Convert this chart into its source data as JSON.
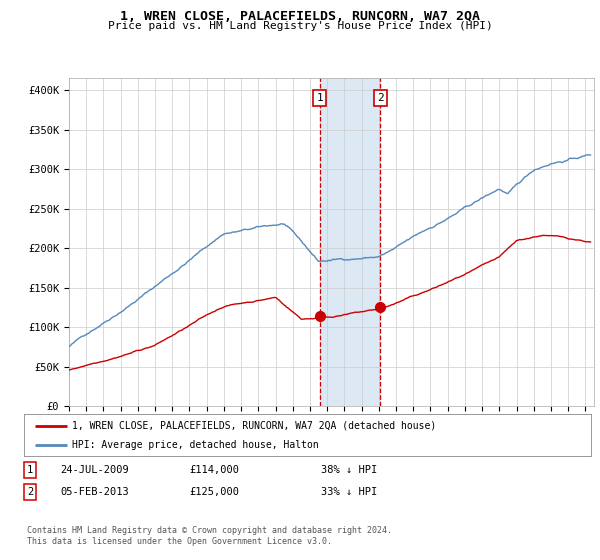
{
  "title": "1, WREN CLOSE, PALACEFIELDS, RUNCORN, WA7 2QA",
  "subtitle": "Price paid vs. HM Land Registry's House Price Index (HPI)",
  "ylabel_ticks": [
    "£0",
    "£50K",
    "£100K",
    "£150K",
    "£200K",
    "£250K",
    "£300K",
    "£350K",
    "£400K"
  ],
  "ytick_values": [
    0,
    50000,
    100000,
    150000,
    200000,
    250000,
    300000,
    350000,
    400000
  ],
  "ylim": [
    0,
    415000
  ],
  "sale1_year": 2009.56,
  "sale1_price": 114000,
  "sale2_year": 2013.09,
  "sale2_price": 125000,
  "highlight_color": "#dce9f5",
  "sale_vline_color": "#cc0000",
  "legend_label_red": "1, WREN CLOSE, PALACEFIELDS, RUNCORN, WA7 2QA (detached house)",
  "legend_label_blue": "HPI: Average price, detached house, Halton",
  "sale1_date": "24-JUL-2009",
  "sale2_date": "05-FEB-2013",
  "sale1_pct": "38%",
  "sale2_pct": "33%",
  "footer": "Contains HM Land Registry data © Crown copyright and database right 2024.\nThis data is licensed under the Open Government Licence v3.0.",
  "red_color": "#cc0000",
  "blue_color": "#5588bb",
  "bg_color": "#ffffff",
  "grid_color": "#cccccc"
}
